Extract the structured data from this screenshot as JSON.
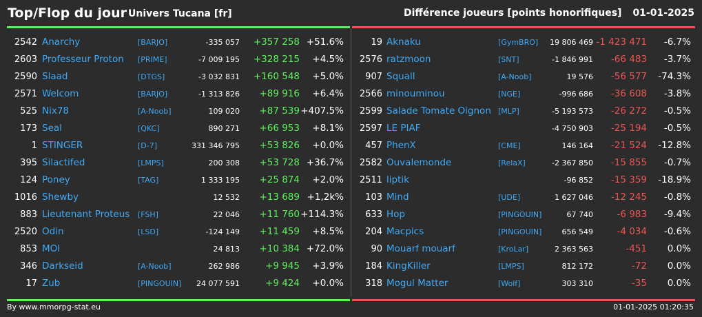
{
  "header": {
    "title": "Top/Flop du jour",
    "universe": "Univers Tucana [fr]",
    "metric": "Différence joueurs [points honorifiques]",
    "date": "01-01-2025"
  },
  "colors": {
    "positive": "#5df05d",
    "negative": "#ec5454",
    "link": "#3fa9f5",
    "background": "#2c2c2c"
  },
  "top": [
    {
      "rank": "2542",
      "name": "Anarchy",
      "alliance": "[BARJO]",
      "total": "-335 057",
      "diff": "+357 258",
      "pct": "+51.6%"
    },
    {
      "rank": "2603",
      "name": "Professeur Proton",
      "alliance": "[PRIME]",
      "total": "-7 009 195",
      "diff": "+328 215",
      "pct": "+4.5%"
    },
    {
      "rank": "2590",
      "name": "Slaad",
      "alliance": "[DTGS]",
      "total": "-3 032 831",
      "diff": "+160 548",
      "pct": "+5.0%"
    },
    {
      "rank": "2571",
      "name": "Welcom",
      "alliance": "[BARJO]",
      "total": "-1 313 826",
      "diff": "+89 916",
      "pct": "+6.4%"
    },
    {
      "rank": "525",
      "name": "Nix78",
      "alliance": "[A-Noob]",
      "total": "109 020",
      "diff": "+87 539",
      "pct": "+407.5%"
    },
    {
      "rank": "173",
      "name": "Seal",
      "alliance": "[QKC]",
      "total": "890 271",
      "diff": "+66 953",
      "pct": "+8.1%"
    },
    {
      "rank": "1",
      "name": "STINGER",
      "alliance": "[D-7]",
      "total": "331 346 795",
      "diff": "+53 826",
      "pct": "+0.0%"
    },
    {
      "rank": "395",
      "name": "Silactifed",
      "alliance": "[LMPS]",
      "total": "200 308",
      "diff": "+53 728",
      "pct": "+36.7%"
    },
    {
      "rank": "124",
      "name": "Poney",
      "alliance": "[TAG]",
      "total": "1 333 195",
      "diff": "+25 874",
      "pct": "+2.0%"
    },
    {
      "rank": "1016",
      "name": "Shewby",
      "alliance": "",
      "total": "12 532",
      "diff": "+13 689",
      "pct": "+1,2k%"
    },
    {
      "rank": "883",
      "name": "Lieutenant Proteus",
      "alliance": "[FSH]",
      "total": "22 046",
      "diff": "+11 760",
      "pct": "+114.3%"
    },
    {
      "rank": "2520",
      "name": "Odin",
      "alliance": "[LSD]",
      "total": "-124 149",
      "diff": "+11 459",
      "pct": "+8.5%"
    },
    {
      "rank": "853",
      "name": "MOI",
      "alliance": "",
      "total": "24 813",
      "diff": "+10 384",
      "pct": "+72.0%"
    },
    {
      "rank": "346",
      "name": "Darkseid",
      "alliance": "[A-Noob]",
      "total": "262 986",
      "diff": "+9 945",
      "pct": "+3.9%"
    },
    {
      "rank": "17",
      "name": "Zub",
      "alliance": "[PINGOUIN]",
      "total": "24 077 591",
      "diff": "+9 424",
      "pct": "+0.0%"
    }
  ],
  "flop": [
    {
      "rank": "19",
      "name": "Aknaku",
      "alliance": "[GymBRO]",
      "total": "19 806 469",
      "diff": "-1 423 471",
      "pct": "-6.7%"
    },
    {
      "rank": "2576",
      "name": "ratzmoon",
      "alliance": "[SNT]",
      "total": "-1 846 991",
      "diff": "-66 483",
      "pct": "-3.7%"
    },
    {
      "rank": "907",
      "name": "Squall",
      "alliance": "[A-Noob]",
      "total": "19 576",
      "diff": "-56 577",
      "pct": "-74.3%"
    },
    {
      "rank": "2566",
      "name": "minouminou",
      "alliance": "[NGE]",
      "total": "-996 686",
      "diff": "-36 608",
      "pct": "-3.8%"
    },
    {
      "rank": "2599",
      "name": "Salade Tomate Oignon",
      "alliance": "[MLP]",
      "total": "-5 193 573",
      "diff": "-26 272",
      "pct": "-0.5%"
    },
    {
      "rank": "2597",
      "name": "LE PIAF",
      "alliance": "",
      "total": "-4 750 903",
      "diff": "-25 194",
      "pct": "-0.5%"
    },
    {
      "rank": "457",
      "name": "PhenX",
      "alliance": "[CME]",
      "total": "146 164",
      "diff": "-21 524",
      "pct": "-12.8%"
    },
    {
      "rank": "2582",
      "name": "Ouvalemonde",
      "alliance": "[RelaX]",
      "total": "-2 367 850",
      "diff": "-15 855",
      "pct": "-0.7%"
    },
    {
      "rank": "2511",
      "name": "liptik",
      "alliance": "",
      "total": "-96 852",
      "diff": "-15 359",
      "pct": "-18.9%"
    },
    {
      "rank": "103",
      "name": "Mind",
      "alliance": "[UDE]",
      "total": "1 627 046",
      "diff": "-12 245",
      "pct": "-0.8%"
    },
    {
      "rank": "633",
      "name": "Hop",
      "alliance": "[PINGOUIN]",
      "total": "67 740",
      "diff": "-6 983",
      "pct": "-9.4%"
    },
    {
      "rank": "204",
      "name": "Macpics",
      "alliance": "[PINGOUIN]",
      "total": "656 549",
      "diff": "-4 034",
      "pct": "-0.6%"
    },
    {
      "rank": "90",
      "name": "Mouarf mouarf",
      "alliance": "[KroLar]",
      "total": "2 363 563",
      "diff": "-451",
      "pct": "0.0%"
    },
    {
      "rank": "184",
      "name": "KingKiller",
      "alliance": "[LMPS]",
      "total": "812 172",
      "diff": "-72",
      "pct": "0.0%"
    },
    {
      "rank": "318",
      "name": "Mogul Matter",
      "alliance": "[Wolf]",
      "total": "303 310",
      "diff": "-35",
      "pct": "0.0%"
    }
  ],
  "footer": {
    "credit": "By www.mmorpg-stat.eu",
    "timestamp": "01-01-2025 01:20:35"
  }
}
